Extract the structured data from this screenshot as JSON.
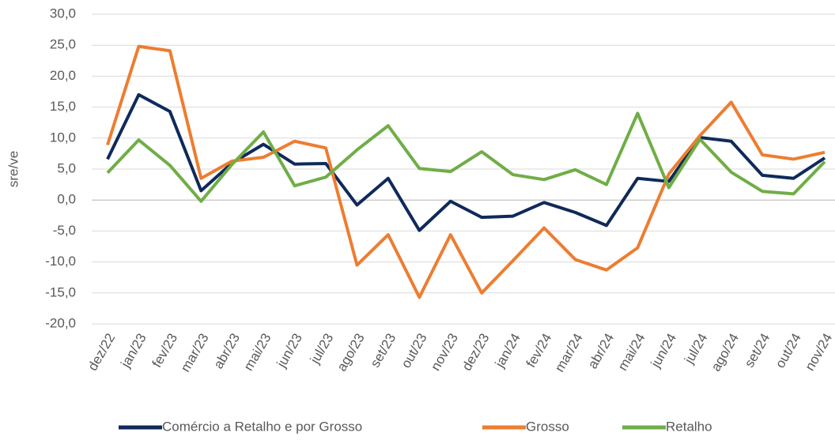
{
  "chart_data": {
    "type": "line",
    "y_label": "sre/ve",
    "categories": [
      "dez/22",
      "jan/23",
      "fev/23",
      "mar/23",
      "abr/23",
      "mai/23",
      "jun/23",
      "jul/23",
      "ago/23",
      "set/23",
      "out/23",
      "nov/23",
      "dez/23",
      "jan/24",
      "fev/24",
      "mar/24",
      "abr/24",
      "mai/24",
      "jun/24",
      "jul/24",
      "ago/24",
      "set/24",
      "out/24",
      "nov/24"
    ],
    "series": [
      {
        "name": "Comércio a Retalho e por Grosso",
        "color": "#0f2a5a",
        "values": [
          6.6,
          17.0,
          14.3,
          1.5,
          6.0,
          9.0,
          5.8,
          5.9,
          -0.8,
          3.5,
          -4.9,
          -0.2,
          -2.8,
          -2.6,
          -0.4,
          -2.0,
          -4.1,
          3.5,
          3.0,
          10.1,
          9.5,
          4.0,
          3.5,
          6.8
        ]
      },
      {
        "name": "Grosso",
        "color": "#ed7d31",
        "values": [
          8.9,
          24.8,
          24.1,
          3.5,
          6.3,
          6.9,
          9.5,
          8.4,
          -10.5,
          -5.6,
          -15.7,
          -5.6,
          -15.0,
          -9.8,
          -4.5,
          -9.6,
          -11.3,
          -7.7,
          4.2,
          10.4,
          15.8,
          7.3,
          6.6,
          7.7
        ]
      },
      {
        "name": "Retalho",
        "color": "#70ad47",
        "values": [
          4.4,
          9.7,
          5.6,
          -0.2,
          5.8,
          11.0,
          2.3,
          3.7,
          8.1,
          12.0,
          5.1,
          4.6,
          7.8,
          4.1,
          3.3,
          4.9,
          2.5,
          14.0,
          2.0,
          9.8,
          4.5,
          1.4,
          1.0,
          6.2
        ]
      }
    ],
    "ylim": [
      -20,
      30
    ],
    "yticks": [
      {
        "value": -20,
        "label": "-20,0"
      },
      {
        "value": -15,
        "label": "-15,0"
      },
      {
        "value": -10,
        "label": "-10,0"
      },
      {
        "value": -5,
        "label": "-5,0"
      },
      {
        "value": 0,
        "label": "0,0"
      },
      {
        "value": 5,
        "label": "5,0"
      },
      {
        "value": 10,
        "label": "10,0"
      },
      {
        "value": 15,
        "label": "15,0"
      },
      {
        "value": 20,
        "label": "20,0"
      },
      {
        "value": 25,
        "label": "25,0"
      },
      {
        "value": 30,
        "label": "30,0"
      }
    ],
    "grid": true
  }
}
